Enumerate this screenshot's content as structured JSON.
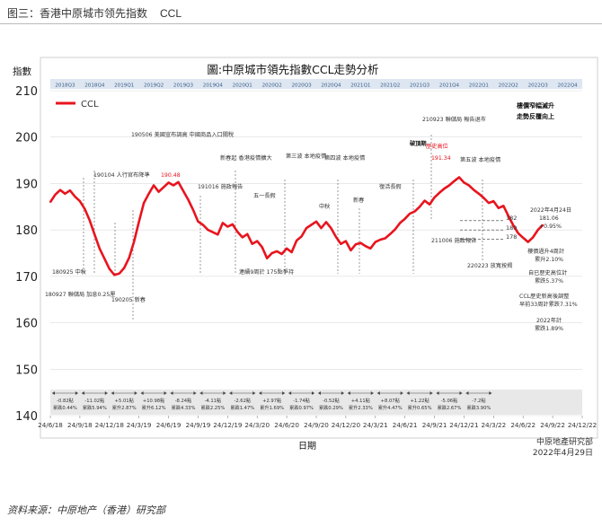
{
  "caption": {
    "title": "图三：香港中原城市领先指数",
    "code": "CCL"
  },
  "source": "资料来源：中原地产（香港）研究部",
  "footer": {
    "company": "中原地產研究部",
    "date": "2022年4月29日"
  },
  "chart_data": {
    "type": "line",
    "title": "圖:中原城市領先指數CCL走勢分析",
    "ylabel": "指數",
    "xlabel": "日期",
    "ylim": [
      140,
      210
    ],
    "yticks": [
      140,
      150,
      160,
      170,
      180,
      190,
      200,
      210
    ],
    "x_start": "2018-06-24",
    "x_end": "2022-08-14",
    "x_ticks": [
      "24/6/18",
      "24/9/18",
      "24/12/18",
      "24/3/19",
      "24/6/19",
      "24/9/19",
      "24/12/19",
      "24/3/20",
      "24/6/20",
      "24/9/20",
      "24/12/20",
      "24/3/21",
      "24/6/21",
      "24/9/21",
      "24/12/21",
      "24/3/22",
      "24/6/22",
      "24/9/22",
      "24/12/22"
    ],
    "quarters": [
      "2018Q3",
      "2018Q4",
      "2019Q1",
      "2019Q2",
      "2019Q3",
      "2019Q4",
      "2020Q1",
      "2020Q2",
      "2020Q3",
      "2020Q4",
      "2021Q1",
      "2021Q2",
      "2021Q3",
      "2021Q4",
      "2022Q1",
      "2022Q2",
      "2022Q3",
      "2022Q4"
    ],
    "series": [
      {
        "name": "CCL",
        "color": "#e8141e",
        "points": [
          [
            "2018-06-24",
            186.0
          ],
          [
            "2018-07-08",
            187.6
          ],
          [
            "2018-07-22",
            188.6
          ],
          [
            "2018-08-05",
            187.8
          ],
          [
            "2018-08-19",
            188.5
          ],
          [
            "2018-09-02",
            187.2
          ],
          [
            "2018-09-16",
            186.2
          ],
          [
            "2018-09-30",
            184.5
          ],
          [
            "2018-10-14",
            182.0
          ],
          [
            "2018-10-28",
            179.0
          ],
          [
            "2018-11-11",
            176.0
          ],
          [
            "2018-11-25",
            173.8
          ],
          [
            "2018-12-09",
            171.6
          ],
          [
            "2018-12-23",
            170.3
          ],
          [
            "2019-01-06",
            170.6
          ],
          [
            "2019-01-20",
            171.8
          ],
          [
            "2019-02-03",
            174.0
          ],
          [
            "2019-02-17",
            177.5
          ],
          [
            "2019-03-03",
            181.8
          ],
          [
            "2019-03-17",
            185.8
          ],
          [
            "2019-03-31",
            187.8
          ],
          [
            "2019-04-14",
            189.6
          ],
          [
            "2019-04-28",
            188.2
          ],
          [
            "2019-05-12",
            189.2
          ],
          [
            "2019-05-26",
            190.2
          ],
          [
            "2019-06-09",
            189.6
          ],
          [
            "2019-06-23",
            190.3
          ],
          [
            "2019-07-07",
            188.4
          ],
          [
            "2019-07-21",
            186.5
          ],
          [
            "2019-08-04",
            184.3
          ],
          [
            "2019-08-18",
            181.8
          ],
          [
            "2019-09-01",
            181.1
          ],
          [
            "2019-09-15",
            180.0
          ],
          [
            "2019-09-29",
            179.5
          ],
          [
            "2019-10-13",
            179.0
          ],
          [
            "2019-10-27",
            181.5
          ],
          [
            "2019-11-10",
            180.7
          ],
          [
            "2019-11-24",
            181.2
          ],
          [
            "2019-12-08",
            179.6
          ],
          [
            "2019-12-22",
            178.4
          ],
          [
            "2020-01-05",
            179.1
          ],
          [
            "2020-01-19",
            177.0
          ],
          [
            "2020-02-02",
            177.6
          ],
          [
            "2020-02-16",
            176.3
          ],
          [
            "2020-03-01",
            173.9
          ],
          [
            "2020-03-15",
            175.0
          ],
          [
            "2020-03-29",
            175.4
          ],
          [
            "2020-04-12",
            174.8
          ],
          [
            "2020-04-26",
            176.0
          ],
          [
            "2020-05-10",
            175.2
          ],
          [
            "2020-05-24",
            177.7
          ],
          [
            "2020-06-07",
            178.6
          ],
          [
            "2020-06-21",
            180.4
          ],
          [
            "2020-07-05",
            181.1
          ],
          [
            "2020-07-19",
            181.8
          ],
          [
            "2020-08-02",
            180.4
          ],
          [
            "2020-08-16",
            181.7
          ],
          [
            "2020-08-30",
            180.4
          ],
          [
            "2020-09-13",
            178.5
          ],
          [
            "2020-09-27",
            177.0
          ],
          [
            "2020-10-11",
            177.6
          ],
          [
            "2020-10-25",
            175.6
          ],
          [
            "2020-11-08",
            176.9
          ],
          [
            "2020-11-22",
            177.2
          ],
          [
            "2020-12-06",
            176.5
          ],
          [
            "2020-12-20",
            176.0
          ],
          [
            "2021-01-03",
            177.4
          ],
          [
            "2021-01-17",
            177.9
          ],
          [
            "2021-01-31",
            178.2
          ],
          [
            "2021-02-14",
            179.1
          ],
          [
            "2021-02-28",
            180.1
          ],
          [
            "2021-03-14",
            181.5
          ],
          [
            "2021-03-28",
            182.4
          ],
          [
            "2021-04-11",
            183.5
          ],
          [
            "2021-04-25",
            184.0
          ],
          [
            "2021-05-09",
            185.0
          ],
          [
            "2021-05-23",
            186.3
          ],
          [
            "2021-06-06",
            185.5
          ],
          [
            "2021-06-20",
            187.0
          ],
          [
            "2021-07-04",
            188.0
          ],
          [
            "2021-07-18",
            188.9
          ],
          [
            "2021-08-01",
            189.6
          ],
          [
            "2021-08-15",
            190.5
          ],
          [
            "2021-08-29",
            191.34
          ],
          [
            "2021-09-12",
            190.2
          ],
          [
            "2021-09-26",
            189.6
          ],
          [
            "2021-10-10",
            188.6
          ],
          [
            "2021-10-24",
            187.8
          ],
          [
            "2021-11-07",
            186.9
          ],
          [
            "2021-11-21",
            185.8
          ],
          [
            "2021-12-05",
            186.2
          ],
          [
            "2021-12-19",
            184.7
          ],
          [
            "2022-01-02",
            185.2
          ],
          [
            "2022-01-16",
            183.0
          ],
          [
            "2022-01-30",
            181.0
          ],
          [
            "2022-02-13",
            179.3
          ],
          [
            "2022-02-27",
            178.3
          ],
          [
            "2022-03-13",
            177.4
          ],
          [
            "2022-03-27",
            178.4
          ],
          [
            "2022-04-10",
            180.0
          ],
          [
            "2022-04-24",
            181.06
          ]
        ]
      }
    ],
    "legend": "top-left",
    "quarter_changes": [
      "-0.82點 累跌0.44%",
      "-11.02點 累跌5.94%",
      "+5.01點 累升2.87%",
      "+10.98點 累升6.12%",
      "-8.24點 累跌4.33%",
      "-4.11點 累跌2.25%",
      "-2.62點 累跌1.47%",
      "+2.97點 累升1.69%",
      "-1.74點 累跌0.97%",
      "-0.52點 累跌0.29%",
      "+4.11點 累升2.33%",
      "+8.07點 累升4.47%",
      "+1.22點 累升0.65%",
      "-5.06點 累跌2.67%",
      "-7.2點 累跌3.90%"
    ],
    "annotations": {
      "a180925": "180925 中秋",
      "a180927": "180927 聯儲局 加息0.25厘",
      "a190104": "190104 人行官布降準",
      "a190205": "190205 新春",
      "a190506": "190506 美國宣布調高 中國商品入口關稅",
      "a190620": "190.48",
      "a191016": "191016 施政報告",
      "a_newyear": "新春起 香港疫情擴大",
      "a_covid_low": "連續9周於 175點爭持",
      "a_may": "五一長假",
      "a_wave3": "第三波 本地疫情",
      "a_midautumn": "中秋",
      "a_wave4": "第四波 本地疫情",
      "a_cny21": "新春",
      "a_easter": "復活長假",
      "a_break": "破頂期",
      "a_high": "歷史高位",
      "a_high_val": "191.34",
      "a_fed": "210923 聯儲局 報告退市",
      "a_wave5": "第五波 本地疫情",
      "a_policy": "211006 施政報告",
      "a_relax": "220223 放寬按揭",
      "a_tr1": "樓價窄幅滅升",
      "a_tr2": "走勢反覆向上",
      "a_l182": "182",
      "a_l180": "180",
      "a_l178": "178",
      "a_s1": "2022年4月24日",
      "a_s2": "181.06",
      "a_s3": "+0.95%",
      "a_s4": "樓價過升4周計",
      "a_s5": "累升2.10%",
      "a_s6": "自已歷史高位計",
      "a_s7": "累跌5.37%",
      "a_s8": "CCL歷史新高後調整",
      "a_s9": "早前33周計累跌7.31%",
      "a_s10": "2022年計",
      "a_s11": "累跌1.89%"
    }
  }
}
